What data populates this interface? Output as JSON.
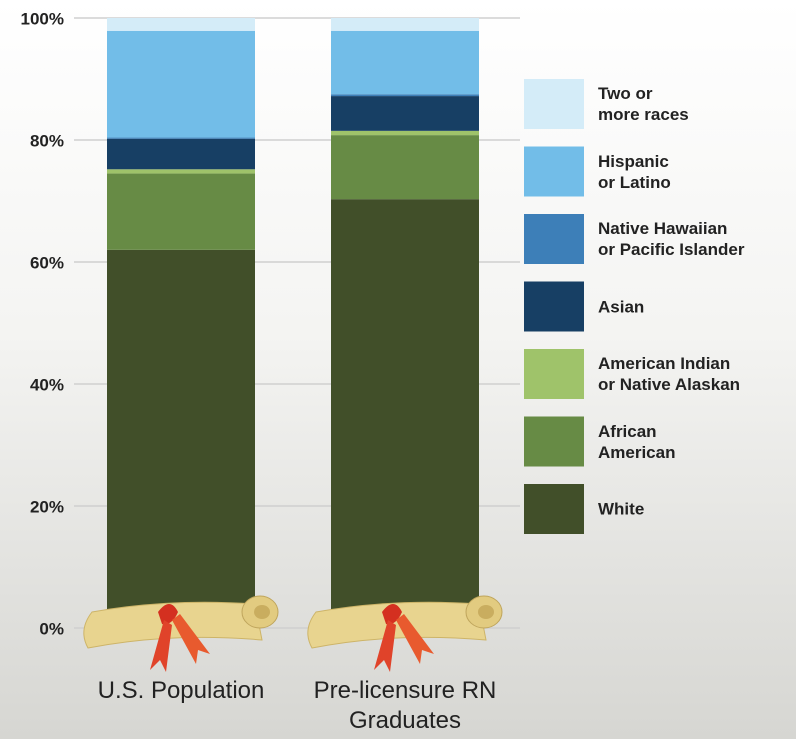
{
  "chart_data": {
    "type": "stacked-bar",
    "categories": [
      "U.S. Population",
      "Pre-licensure RN\nGraduates"
    ],
    "ylim": [
      0,
      100
    ],
    "yticks": [
      {
        "value": 0,
        "label": "0%"
      },
      {
        "value": 20,
        "label": "20%"
      },
      {
        "value": 40,
        "label": "40%"
      },
      {
        "value": 60,
        "label": "60%"
      },
      {
        "value": 80,
        "label": "80%"
      },
      {
        "value": 100,
        "label": "100%"
      }
    ],
    "grid": true,
    "series": [
      {
        "name": "White",
        "color": "#414f29",
        "values": [
          62,
          70.3
        ]
      },
      {
        "name": "African\nAmerican",
        "color": "#678b45",
        "values": [
          12.5,
          10.5
        ]
      },
      {
        "name": "American Indian\nor Native Alaskan",
        "color": "#9fc36a",
        "values": [
          0.7,
          0.7
        ]
      },
      {
        "name": "Asian",
        "color": "#173f64",
        "values": [
          5,
          5.7
        ]
      },
      {
        "name": "Native Hawaiian\nor Pacific Islander",
        "color": "#3d7fb8",
        "values": [
          0.2,
          0.3
        ]
      },
      {
        "name": "Hispanic\nor Latino",
        "color": "#72bde8",
        "values": [
          17.5,
          10.4
        ]
      },
      {
        "name": "Two or\nmore races",
        "color": "#d4ecf8",
        "values": [
          2.1,
          2.1
        ]
      }
    ]
  }
}
